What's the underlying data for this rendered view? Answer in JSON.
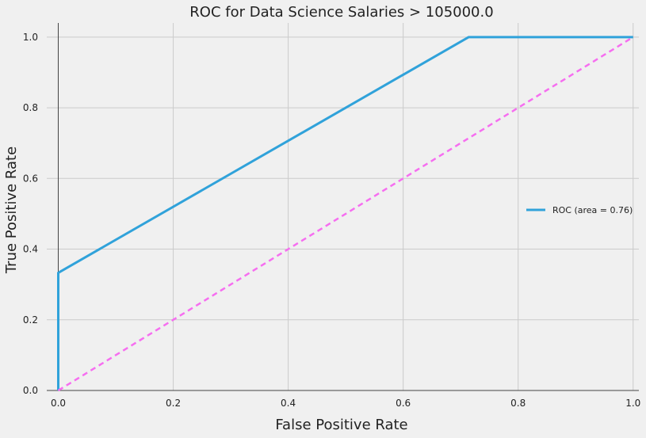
{
  "chart_data": {
    "type": "line",
    "title": "ROC for Data Science Salaries > 105000.0",
    "xlabel": "False Positive Rate",
    "ylabel": "True Positive Rate",
    "xlim": [
      -0.02,
      1.01
    ],
    "ylim": [
      0.0,
      1.04
    ],
    "xticks": [
      "0.0",
      "0.2",
      "0.4",
      "0.6",
      "0.8",
      "1.0"
    ],
    "yticks": [
      "0.0",
      "0.2",
      "0.4",
      "0.6",
      "0.8",
      "1.0"
    ],
    "grid": true,
    "legend_position": "center-right",
    "series": [
      {
        "name": "ROC (area = 0.76)",
        "color": "#30a2da",
        "x": [
          0.0,
          0.0,
          0.0,
          0.714,
          1.0
        ],
        "y": [
          0.0,
          0.136,
          0.333,
          1.0,
          1.0
        ]
      },
      {
        "name": "",
        "color": "#f66ef0",
        "dashed": true,
        "x": [
          0.0,
          1.0
        ],
        "y": [
          0.0,
          1.0
        ]
      }
    ]
  }
}
